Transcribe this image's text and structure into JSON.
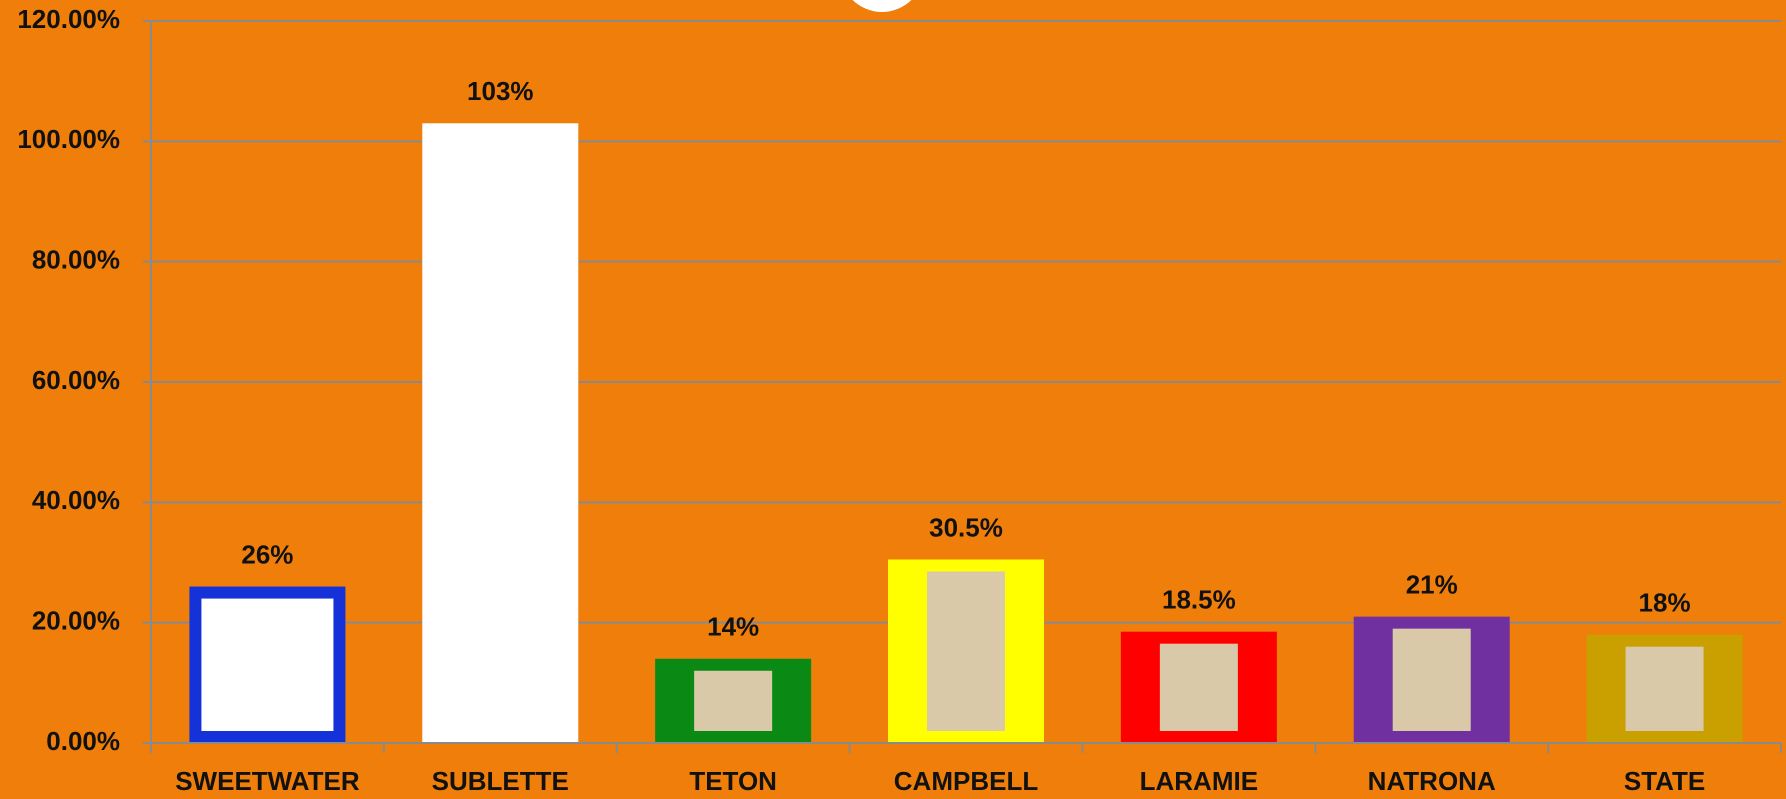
{
  "chart_data": {
    "type": "bar",
    "categories": [
      "SWEETWATER",
      "SUBLETTE",
      "TETON",
      "CAMPBELL",
      "LARAMIE",
      "NATRONA",
      "STATE"
    ],
    "values": [
      26,
      103,
      14,
      30.5,
      18.5,
      21,
      18
    ],
    "value_labels": [
      "26%",
      "103%",
      "14%",
      "30.5%",
      "18.5%",
      "21%",
      "18%"
    ],
    "colors": [
      "#1432d8",
      "#ffffff",
      "#0a8a14",
      "#ffff00",
      "#ff0000",
      "#7030a0",
      "#c9a000"
    ],
    "ylim": [
      0,
      120
    ],
    "yticks": [
      {
        "value": 0,
        "label": "0.00%"
      },
      {
        "value": 20,
        "label": "20.00%"
      },
      {
        "value": 40,
        "label": "40.00%"
      },
      {
        "value": 60,
        "label": "60.00%"
      },
      {
        "value": 80,
        "label": "80.00%"
      },
      {
        "value": 100,
        "label": "100.00%"
      },
      {
        "value": 120,
        "label": "120.00%"
      }
    ],
    "grid": true
  }
}
